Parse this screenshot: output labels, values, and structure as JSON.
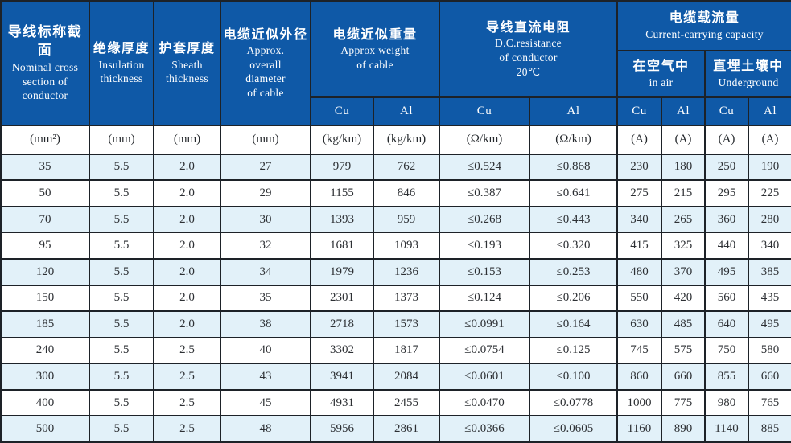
{
  "table": {
    "header": {
      "conductor": {
        "zh": "导线标称截面",
        "en": "Nominal cross\nsection of\nconductor"
      },
      "insulation": {
        "zh": "绝缘厚度",
        "en": "Insulation\nthickness"
      },
      "sheath": {
        "zh": "护套厚度",
        "en": "Sheath\nthickness"
      },
      "diameter": {
        "zh": "电缆近似外径",
        "en": "Approx.\noverall\ndiameter\nof cable"
      },
      "weight": {
        "zh": "电缆近似重量",
        "en": "Approx weight\nof cable"
      },
      "resistance": {
        "zh": "导线直流电阻",
        "en": "D.C.resistance\nof conductor\n20℃"
      },
      "capacity": {
        "zh": "电缆载流量",
        "en": "Current-carrying capacity"
      },
      "in_air": {
        "zh": "在空气中",
        "en": "in air"
      },
      "underground": {
        "zh": "直埋土壤中",
        "en": "Underground"
      },
      "cu": "Cu",
      "al": "Al"
    },
    "units": [
      "(mm²)",
      "(mm)",
      "(mm)",
      "(mm)",
      "(kg/km)",
      "(kg/km)",
      "(Ω/km)",
      "(Ω/km)",
      "(A)",
      "(A)",
      "(A)",
      "(A)"
    ],
    "rows": [
      [
        "35",
        "5.5",
        "2.0",
        "27",
        "979",
        "762",
        "≤0.524",
        "≤0.868",
        "230",
        "180",
        "250",
        "190"
      ],
      [
        "50",
        "5.5",
        "2.0",
        "29",
        "1155",
        "846",
        "≤0.387",
        "≤0.641",
        "275",
        "215",
        "295",
        "225"
      ],
      [
        "70",
        "5.5",
        "2.0",
        "30",
        "1393",
        "959",
        "≤0.268",
        "≤0.443",
        "340",
        "265",
        "360",
        "280"
      ],
      [
        "95",
        "5.5",
        "2.0",
        "32",
        "1681",
        "1093",
        "≤0.193",
        "≤0.320",
        "415",
        "325",
        "440",
        "340"
      ],
      [
        "120",
        "5.5",
        "2.0",
        "34",
        "1979",
        "1236",
        "≤0.153",
        "≤0.253",
        "480",
        "370",
        "495",
        "385"
      ],
      [
        "150",
        "5.5",
        "2.0",
        "35",
        "2301",
        "1373",
        "≤0.124",
        "≤0.206",
        "550",
        "420",
        "560",
        "435"
      ],
      [
        "185",
        "5.5",
        "2.0",
        "38",
        "2718",
        "1573",
        "≤0.0991",
        "≤0.164",
        "630",
        "485",
        "640",
        "495"
      ],
      [
        "240",
        "5.5",
        "2.5",
        "40",
        "3302",
        "1817",
        "≤0.0754",
        "≤0.125",
        "745",
        "575",
        "750",
        "580"
      ],
      [
        "300",
        "5.5",
        "2.5",
        "43",
        "3941",
        "2084",
        "≤0.0601",
        "≤0.100",
        "860",
        "660",
        "855",
        "660"
      ],
      [
        "400",
        "5.5",
        "2.5",
        "45",
        "4931",
        "2455",
        "≤0.0470",
        "≤0.0778",
        "1000",
        "775",
        "980",
        "765"
      ],
      [
        "500",
        "5.5",
        "2.5",
        "48",
        "5956",
        "2861",
        "≤0.0366",
        "≤0.0605",
        "1160",
        "890",
        "1140",
        "885"
      ]
    ],
    "colors": {
      "header_bg": "#0f59a7",
      "header_text": "#ffffff",
      "row_alt_bg": "#e2f1f9",
      "row_bg": "#ffffff",
      "border": "#1d2228",
      "data_text": "#2d3034"
    }
  },
  "chart_data": {
    "type": "table",
    "title": "电缆载流量 Current-carrying capacity",
    "columns": [
      "Nominal cross section of conductor (mm²)",
      "Insulation thickness (mm)",
      "Sheath thickness (mm)",
      "Approx. overall diameter of cable (mm)",
      "Approx weight of cable Cu (kg/km)",
      "Approx weight of cable Al (kg/km)",
      "D.C. resistance of conductor 20℃ Cu (Ω/km)",
      "D.C. resistance of conductor 20℃ Al (Ω/km)",
      "Current-carrying capacity in air Cu (A)",
      "Current-carrying capacity in air Al (A)",
      "Current-carrying capacity underground Cu (A)",
      "Current-carrying capacity underground Al (A)"
    ],
    "rows": [
      [
        "35",
        "5.5",
        "2.0",
        "27",
        "979",
        "762",
        "≤0.524",
        "≤0.868",
        "230",
        "180",
        "250",
        "190"
      ],
      [
        "50",
        "5.5",
        "2.0",
        "29",
        "1155",
        "846",
        "≤0.387",
        "≤0.641",
        "275",
        "215",
        "295",
        "225"
      ],
      [
        "70",
        "5.5",
        "2.0",
        "30",
        "1393",
        "959",
        "≤0.268",
        "≤0.443",
        "340",
        "265",
        "360",
        "280"
      ],
      [
        "95",
        "5.5",
        "2.0",
        "32",
        "1681",
        "1093",
        "≤0.193",
        "≤0.320",
        "415",
        "325",
        "440",
        "340"
      ],
      [
        "120",
        "5.5",
        "2.0",
        "34",
        "1979",
        "1236",
        "≤0.153",
        "≤0.253",
        "480",
        "370",
        "495",
        "385"
      ],
      [
        "150",
        "5.5",
        "2.0",
        "35",
        "2301",
        "1373",
        "≤0.124",
        "≤0.206",
        "550",
        "420",
        "560",
        "435"
      ],
      [
        "185",
        "5.5",
        "2.0",
        "38",
        "2718",
        "1573",
        "≤0.0991",
        "≤0.164",
        "630",
        "485",
        "640",
        "495"
      ],
      [
        "240",
        "5.5",
        "2.5",
        "40",
        "3302",
        "1817",
        "≤0.0754",
        "≤0.125",
        "745",
        "575",
        "750",
        "580"
      ],
      [
        "300",
        "5.5",
        "2.5",
        "43",
        "3941",
        "2084",
        "≤0.0601",
        "≤0.100",
        "860",
        "660",
        "855",
        "660"
      ],
      [
        "400",
        "5.5",
        "2.5",
        "45",
        "4931",
        "2455",
        "≤0.0470",
        "≤0.0778",
        "1000",
        "775",
        "980",
        "765"
      ],
      [
        "500",
        "5.5",
        "2.5",
        "48",
        "5956",
        "2861",
        "≤0.0366",
        "≤0.0605",
        "1160",
        "890",
        "1140",
        "885"
      ]
    ]
  }
}
